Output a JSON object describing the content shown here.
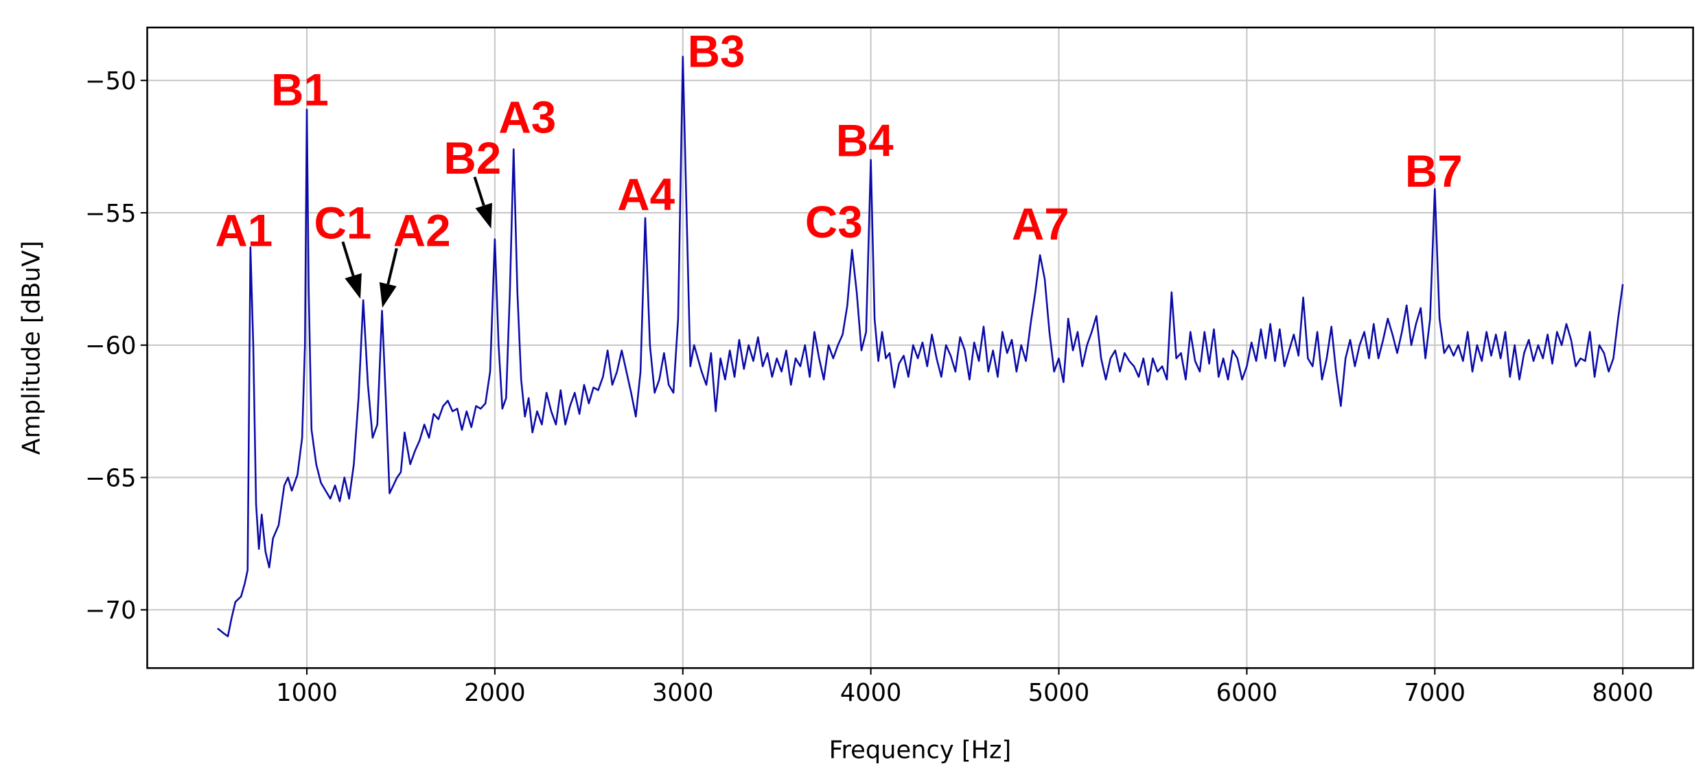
{
  "chart_data": {
    "type": "line",
    "xlabel": "Frequency [Hz]",
    "ylabel": "Amplitude [dBuV]",
    "xlim": [
      151,
      8374
    ],
    "ylim": [
      -72.2,
      -48.0
    ],
    "xticks": [
      1000,
      2000,
      3000,
      4000,
      5000,
      6000,
      7000,
      8000
    ],
    "yticks": [
      {
        "value": -70,
        "label": "−70"
      },
      {
        "value": -65,
        "label": "−65"
      },
      {
        "value": -60,
        "label": "−60"
      },
      {
        "value": -55,
        "label": "−55"
      },
      {
        "value": -50,
        "label": "−50"
      }
    ],
    "grid": true,
    "annotations": [
      "A1",
      "B1",
      "C1",
      "A2",
      "B2",
      "A3",
      "A4",
      "B3",
      "C3",
      "B4",
      "A7",
      "B7"
    ],
    "series": [
      {
        "color": "#0a0aa8",
        "x": [
          525,
          560,
          580,
          600,
          620,
          650,
          670,
          685,
          700,
          715,
          730,
          745,
          760,
          780,
          800,
          820,
          850,
          880,
          900,
          920,
          950,
          975,
          990,
          1000,
          1010,
          1025,
          1050,
          1075,
          1100,
          1125,
          1150,
          1175,
          1200,
          1225,
          1250,
          1275,
          1300,
          1325,
          1350,
          1375,
          1400,
          1420,
          1440,
          1460,
          1480,
          1500,
          1520,
          1550,
          1575,
          1600,
          1625,
          1650,
          1675,
          1700,
          1725,
          1750,
          1775,
          1800,
          1825,
          1850,
          1875,
          1900,
          1925,
          1950,
          1975,
          2000,
          2020,
          2040,
          2060,
          2080,
          2100,
          2120,
          2140,
          2160,
          2180,
          2200,
          2225,
          2250,
          2275,
          2300,
          2325,
          2350,
          2375,
          2400,
          2425,
          2450,
          2475,
          2500,
          2525,
          2550,
          2575,
          2600,
          2625,
          2650,
          2675,
          2700,
          2725,
          2750,
          2775,
          2800,
          2825,
          2850,
          2875,
          2900,
          2925,
          2950,
          2975,
          3000,
          3020,
          3040,
          3060,
          3080,
          3100,
          3125,
          3150,
          3175,
          3200,
          3225,
          3250,
          3275,
          3300,
          3325,
          3350,
          3375,
          3400,
          3425,
          3450,
          3475,
          3500,
          3525,
          3550,
          3575,
          3600,
          3625,
          3650,
          3675,
          3700,
          3725,
          3750,
          3775,
          3800,
          3825,
          3850,
          3875,
          3900,
          3925,
          3950,
          3975,
          4000,
          4020,
          4040,
          4060,
          4080,
          4100,
          4125,
          4150,
          4175,
          4200,
          4225,
          4250,
          4275,
          4300,
          4325,
          4350,
          4375,
          4400,
          4425,
          4450,
          4475,
          4500,
          4525,
          4550,
          4575,
          4600,
          4625,
          4650,
          4675,
          4700,
          4725,
          4750,
          4775,
          4800,
          4825,
          4850,
          4875,
          4900,
          4925,
          4950,
          4975,
          5000,
          5025,
          5050,
          5075,
          5100,
          5125,
          5150,
          5175,
          5200,
          5225,
          5250,
          5275,
          5300,
          5325,
          5350,
          5375,
          5400,
          5425,
          5450,
          5475,
          5500,
          5525,
          5550,
          5575,
          5600,
          5625,
          5650,
          5675,
          5700,
          5725,
          5750,
          5775,
          5800,
          5825,
          5850,
          5875,
          5900,
          5925,
          5950,
          5975,
          6000,
          6025,
          6050,
          6075,
          6100,
          6125,
          6150,
          6175,
          6200,
          6225,
          6250,
          6275,
          6300,
          6325,
          6350,
          6375,
          6400,
          6425,
          6450,
          6475,
          6500,
          6525,
          6550,
          6575,
          6600,
          6625,
          6650,
          6675,
          6700,
          6725,
          6750,
          6775,
          6800,
          6825,
          6850,
          6875,
          6900,
          6925,
          6950,
          6975,
          7000,
          7025,
          7050,
          7075,
          7100,
          7125,
          7150,
          7175,
          7200,
          7225,
          7250,
          7275,
          7300,
          7325,
          7350,
          7375,
          7400,
          7425,
          7450,
          7475,
          7500,
          7525,
          7550,
          7575,
          7600,
          7625,
          7650,
          7675,
          7700,
          7725,
          7750,
          7775,
          7800,
          7825,
          7850,
          7875,
          7900,
          7925,
          7950,
          7975,
          8000
        ],
        "values": [
          -70.7,
          -70.9,
          -71.0,
          -70.3,
          -69.7,
          -69.5,
          -69.0,
          -68.5,
          -56.3,
          -60,
          -66,
          -67.7,
          -66.4,
          -67.8,
          -68.4,
          -67.3,
          -66.8,
          -65.3,
          -65.0,
          -65.5,
          -64.9,
          -63.5,
          -60,
          -51.1,
          -58,
          -63.2,
          -64.5,
          -65.2,
          -65.5,
          -65.8,
          -65.3,
          -65.9,
          -65.0,
          -65.8,
          -64.5,
          -62.0,
          -58.3,
          -61.5,
          -63.5,
          -63.0,
          -58.7,
          -62,
          -65.6,
          -65.3,
          -65.0,
          -64.8,
          -63.3,
          -64.5,
          -64.0,
          -63.6,
          -63.0,
          -63.5,
          -62.6,
          -62.8,
          -62.3,
          -62.1,
          -62.5,
          -62.4,
          -63.2,
          -62.5,
          -63.1,
          -62.3,
          -62.4,
          -62.2,
          -61,
          -56.0,
          -60,
          -62.4,
          -62.0,
          -58,
          -52.6,
          -58,
          -61.3,
          -62.7,
          -62.0,
          -63.3,
          -62.5,
          -63.0,
          -61.8,
          -62.5,
          -63.0,
          -61.7,
          -63.0,
          -62.3,
          -61.8,
          -62.6,
          -61.5,
          -62.2,
          -61.6,
          -61.7,
          -61.2,
          -60.2,
          -61.5,
          -61.0,
          -60.2,
          -61.0,
          -61.8,
          -62.7,
          -61,
          -55.2,
          -60,
          -61.8,
          -61.3,
          -60.3,
          -61.5,
          -61.8,
          -59,
          -49.1,
          -55,
          -60.8,
          -60.0,
          -60.5,
          -61.0,
          -61.5,
          -60.3,
          -62.5,
          -60.5,
          -61.3,
          -60.2,
          -61.2,
          -59.8,
          -60.9,
          -60.0,
          -60.6,
          -59.7,
          -60.8,
          -60.3,
          -61.2,
          -60.5,
          -61.0,
          -60.2,
          -61.5,
          -60.5,
          -60.8,
          -60.0,
          -61.2,
          -59.5,
          -60.5,
          -61.3,
          -60.0,
          -60.5,
          -60.0,
          -59.6,
          -58.5,
          -56.4,
          -58.0,
          -60.2,
          -59.5,
          -53.0,
          -59,
          -60.6,
          -59.5,
          -60.5,
          -60.3,
          -61.6,
          -60.7,
          -60.4,
          -61.2,
          -60.0,
          -60.5,
          -59.9,
          -60.8,
          -59.6,
          -60.5,
          -61.2,
          -60.0,
          -60.4,
          -61.0,
          -59.7,
          -60.2,
          -61.3,
          -59.9,
          -60.6,
          -59.3,
          -61.0,
          -60.2,
          -61.2,
          -59.5,
          -60.3,
          -59.8,
          -61.0,
          -60.0,
          -60.6,
          -59.2,
          -58.0,
          -56.6,
          -57.5,
          -59.5,
          -61.0,
          -60.5,
          -61.4,
          -59.0,
          -60.2,
          -59.5,
          -60.8,
          -60.0,
          -59.5,
          -58.9,
          -60.5,
          -61.3,
          -60.5,
          -60.2,
          -61.0,
          -60.3,
          -60.6,
          -60.8,
          -61.2,
          -60.5,
          -61.5,
          -60.5,
          -61.0,
          -60.8,
          -61.3,
          -58.0,
          -60.5,
          -60.3,
          -61.3,
          -59.5,
          -60.6,
          -61.0,
          -59.5,
          -60.7,
          -59.4,
          -61.2,
          -60.5,
          -61.3,
          -60.2,
          -60.5,
          -61.3,
          -60.8,
          -59.9,
          -60.6,
          -59.4,
          -60.5,
          -59.2,
          -60.6,
          -59.4,
          -60.8,
          -60.2,
          -59.6,
          -60.4,
          -58.2,
          -60.5,
          -60.8,
          -59.5,
          -61.3,
          -60.5,
          -59.3,
          -61.0,
          -62.3,
          -60.5,
          -59.8,
          -60.8,
          -60.0,
          -59.5,
          -60.5,
          -59.2,
          -60.5,
          -59.8,
          -59.0,
          -59.6,
          -60.3,
          -59.5,
          -58.5,
          -60.0,
          -59.2,
          -58.6,
          -60.5,
          -59.0,
          -54.1,
          -59.0,
          -60.3,
          -60.0,
          -60.4,
          -60.0,
          -60.6,
          -59.5,
          -61.0,
          -60.0,
          -60.6,
          -59.5,
          -60.4,
          -59.6,
          -60.5,
          -59.5,
          -61.2,
          -60.0,
          -61.3,
          -60.3,
          -59.8,
          -60.6,
          -60.0,
          -60.5,
          -59.6,
          -60.7,
          -59.5,
          -60.0,
          -59.2,
          -59.8,
          -60.8,
          -60.5,
          -60.6,
          -59.5,
          -61.2,
          -60.0,
          -60.3,
          -61.0,
          -60.5,
          -59.0,
          -57.7
        ]
      }
    ]
  }
}
